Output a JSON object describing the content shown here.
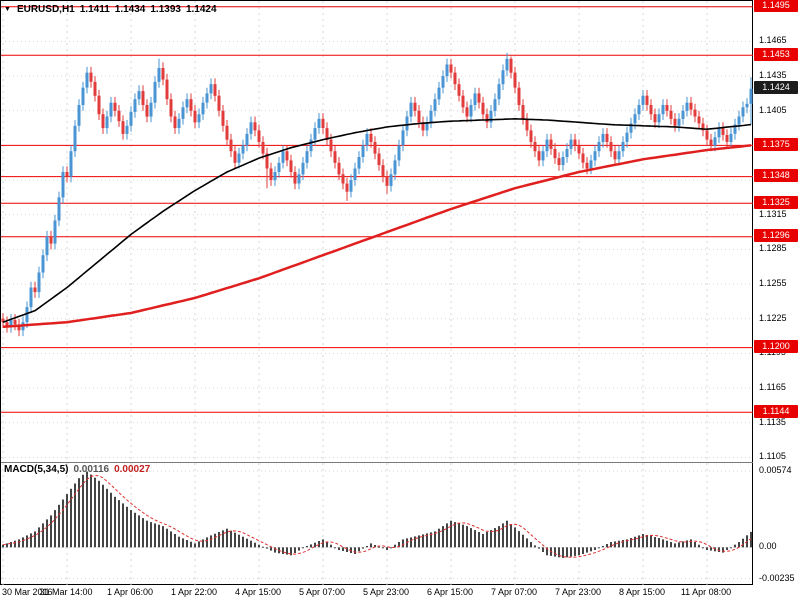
{
  "header": {
    "symbol": "EURUSD,H1",
    "open": "1.1411",
    "high": "1.1434",
    "low": "1.1393",
    "close": "1.1424"
  },
  "macd_header": {
    "label": "MACD(5,34,5)",
    "main_value": "0.00116",
    "signal_value": "0.00027"
  },
  "colors": {
    "bull": "#4a94d4",
    "bear": "#e23b3b",
    "ma_fast_black": "#000000",
    "ma_slow_red": "#e01f1f",
    "level_line": "#f00000",
    "level_label_bg": "#e80000",
    "current_label_bg": "#1c1c1c",
    "grid": "#d6d6d6",
    "histogram": "#444444",
    "signal_line": "#e03030",
    "text": "#000000",
    "background": "#ffffff"
  },
  "chart_data": {
    "type": "candlestick",
    "symbol": "EURUSD",
    "timeframe": "H1",
    "title": "EURUSD,H1 1.1411 1.1434 1.1393 1.1424",
    "ylim": [
      1.1101,
      1.15
    ],
    "price_step": 0.003,
    "axis_ticks": [
      "1.1495",
      "1.1465",
      "1.1435",
      "1.1405",
      "1.1375",
      "1.1345",
      "1.1315",
      "1.1285",
      "1.1255",
      "1.1225",
      "1.1195",
      "1.1165",
      "1.1135",
      "1.1105"
    ],
    "levels": [
      1.1495,
      1.1453,
      1.1375,
      1.1348,
      1.1325,
      1.1296,
      1.12,
      1.1144
    ],
    "level_labels": [
      "1.1495",
      "1.1453",
      "1.1375",
      "1.1348",
      "1.1325",
      "1.1296",
      "1.1200",
      "1.1144"
    ],
    "current_price": 1.1424,
    "current_price_label": "1.1424",
    "last_bar_ohlc": [
      1.1411,
      1.1434,
      1.1393,
      1.1424
    ],
    "bars_total": 188,
    "first_open": 1.1225,
    "default_wick": 0.0005,
    "closes": [
      1.1222,
      1.1218,
      1.1224,
      1.122,
      1.1215,
      1.1222,
      1.1235,
      1.1252,
      1.1248,
      1.1265,
      1.128,
      1.1296,
      1.129,
      1.131,
      1.133,
      1.1352,
      1.1348,
      1.137,
      1.1392,
      1.141,
      1.1425,
      1.1438,
      1.143,
      1.1418,
      1.1402,
      1.139,
      1.14,
      1.1412,
      1.1405,
      1.1396,
      1.1385,
      1.1392,
      1.1404,
      1.1415,
      1.1422,
      1.141,
      1.14,
      1.1412,
      1.143,
      1.1442,
      1.1432,
      1.1415,
      1.14,
      1.139,
      1.1398,
      1.1408,
      1.1415,
      1.1405,
      1.1395,
      1.1402,
      1.1412,
      1.142,
      1.1428,
      1.1418,
      1.1405,
      1.1392,
      1.138,
      1.137,
      1.136,
      1.1368,
      1.1375,
      1.1385,
      1.1395,
      1.1388,
      1.1378,
      1.1368,
      1.1355,
      1.1345,
      1.1352,
      1.136,
      1.137,
      1.1362,
      1.1352,
      1.1342,
      1.135,
      1.136,
      1.137,
      1.138,
      1.139,
      1.1398,
      1.139,
      1.138,
      1.137,
      1.136,
      1.135,
      1.1342,
      1.1335,
      1.1345,
      1.1355,
      1.1365,
      1.1375,
      1.1385,
      1.1378,
      1.1368,
      1.1358,
      1.1348,
      1.134,
      1.135,
      1.1362,
      1.1375,
      1.1388,
      1.14,
      1.1412,
      1.1405,
      1.1395,
      1.1388,
      1.1395,
      1.1405,
      1.1415,
      1.1425,
      1.1435,
      1.1445,
      1.1438,
      1.1428,
      1.1418,
      1.1408,
      1.14,
      1.141,
      1.142,
      1.1412,
      1.1402,
      1.1395,
      1.1405,
      1.1415,
      1.1428,
      1.144,
      1.145,
      1.1438,
      1.1425,
      1.141,
      1.1398,
      1.1388,
      1.1378,
      1.137,
      1.1362,
      1.137,
      1.138,
      1.1372,
      1.1364,
      1.1358,
      1.1365,
      1.1372,
      1.138,
      1.1375,
      1.1368,
      1.136,
      1.1355,
      1.1362,
      1.137,
      1.1378,
      1.1385,
      1.1378,
      1.137,
      1.1363,
      1.137,
      1.1378,
      1.1386,
      1.1394,
      1.1402,
      1.141,
      1.1418,
      1.141,
      1.1402,
      1.1395,
      1.1402,
      1.141,
      1.1405,
      1.1398,
      1.1392,
      1.1398,
      1.1405,
      1.1412,
      1.1406,
      1.14,
      1.1394,
      1.1388,
      1.138,
      1.1375,
      1.1382,
      1.139,
      1.1384,
      1.1378,
      1.1385,
      1.1393,
      1.14,
      1.1408,
      1.1411,
      1.1424
    ],
    "wick_overrides": {
      "21": {
        "h": 1.1443
      },
      "39": {
        "h": 1.145
      },
      "66": {
        "l": 1.1338
      },
      "86": {
        "l": 1.1327
      },
      "96": {
        "l": 1.1333
      },
      "127": {
        "h": 1.1452
      },
      "187": {
        "h": 1.1434,
        "l": 1.1393
      }
    },
    "ma_fast_black": [
      [
        0,
        1.1222
      ],
      [
        8,
        1.1232
      ],
      [
        16,
        1.1252
      ],
      [
        24,
        1.1275
      ],
      [
        32,
        1.1298
      ],
      [
        40,
        1.1318
      ],
      [
        48,
        1.1336
      ],
      [
        56,
        1.1352
      ],
      [
        64,
        1.1364
      ],
      [
        72,
        1.1373
      ],
      [
        80,
        1.138
      ],
      [
        88,
        1.1386
      ],
      [
        96,
        1.1391
      ],
      [
        104,
        1.1394
      ],
      [
        112,
        1.1396
      ],
      [
        120,
        1.1397
      ],
      [
        128,
        1.1398
      ],
      [
        136,
        1.1397
      ],
      [
        144,
        1.1395
      ],
      [
        152,
        1.1393
      ],
      [
        160,
        1.1392
      ],
      [
        168,
        1.1391
      ],
      [
        176,
        1.1389
      ],
      [
        187,
        1.1393
      ]
    ],
    "ma_slow_red": [
      [
        0,
        1.1218
      ],
      [
        16,
        1.1222
      ],
      [
        32,
        1.123
      ],
      [
        48,
        1.1243
      ],
      [
        64,
        1.126
      ],
      [
        80,
        1.128
      ],
      [
        96,
        1.13
      ],
      [
        112,
        1.132
      ],
      [
        128,
        1.1338
      ],
      [
        144,
        1.1352
      ],
      [
        160,
        1.1363
      ],
      [
        176,
        1.1371
      ],
      [
        187,
        1.1375
      ]
    ],
    "x_labels": [
      {
        "i": 0,
        "t": "30 Mar 2016"
      },
      {
        "i": 16,
        "t": "31 Mar 14:00"
      },
      {
        "i": 32,
        "t": "1 Apr 06:00"
      },
      {
        "i": 48,
        "t": "1 Apr 22:00"
      },
      {
        "i": 64,
        "t": "4 Apr 15:00"
      },
      {
        "i": 80,
        "t": "5 Apr 07:00"
      },
      {
        "i": 96,
        "t": "5 Apr 23:00"
      },
      {
        "i": 112,
        "t": "6 Apr 15:00"
      },
      {
        "i": 128,
        "t": "7 Apr 07:00"
      },
      {
        "i": 144,
        "t": "7 Apr 23:00"
      },
      {
        "i": 160,
        "t": "8 Apr 15:00"
      },
      {
        "i": 176,
        "t": "11 Apr 08:00"
      }
    ],
    "macd": {
      "label": "MACD(5,34,5)",
      "main_value": 0.00116,
      "signal_value": 0.00027,
      "ylim": [
        -0.00283,
        0.00634
      ],
      "axis_values": [
        0.00574,
        0,
        -0.00235
      ],
      "axis_labels": [
        "0.00574",
        "0.00",
        "-0.00235"
      ],
      "signal_smoothing": 5,
      "histogram_points": [
        [
          0,
          0.0002
        ],
        [
          4,
          0.0006
        ],
        [
          8,
          0.0012
        ],
        [
          12,
          0.0024
        ],
        [
          16,
          0.004
        ],
        [
          19,
          0.0052
        ],
        [
          21,
          0.0057
        ],
        [
          24,
          0.005
        ],
        [
          28,
          0.0038
        ],
        [
          32,
          0.0028
        ],
        [
          36,
          0.002
        ],
        [
          40,
          0.0016
        ],
        [
          44,
          0.0008
        ],
        [
          48,
          0.0003
        ],
        [
          52,
          0.0009
        ],
        [
          56,
          0.0014
        ],
        [
          60,
          0.0008
        ],
        [
          64,
          0.0002
        ],
        [
          68,
          -0.0004
        ],
        [
          72,
          -0.0006
        ],
        [
          76,
          0.0001
        ],
        [
          80,
          0.0006
        ],
        [
          84,
          -0.0002
        ],
        [
          88,
          -0.0005
        ],
        [
          92,
          0.0003
        ],
        [
          96,
          -0.0002
        ],
        [
          100,
          0.0006
        ],
        [
          104,
          0.0009
        ],
        [
          108,
          0.0012
        ],
        [
          112,
          0.002
        ],
        [
          116,
          0.0016
        ],
        [
          120,
          0.001
        ],
        [
          124,
          0.0016
        ],
        [
          126,
          0.002
        ],
        [
          128,
          0.0015
        ],
        [
          132,
          0.0004
        ],
        [
          136,
          -0.0006
        ],
        [
          140,
          -0.0008
        ],
        [
          144,
          -0.0006
        ],
        [
          148,
          -0.0002
        ],
        [
          152,
          0.0004
        ],
        [
          156,
          0.0006
        ],
        [
          160,
          0.001
        ],
        [
          164,
          0.0007
        ],
        [
          168,
          0.0003
        ],
        [
          172,
          0.0006
        ],
        [
          176,
          -0.0002
        ],
        [
          180,
          -0.0004
        ],
        [
          184,
          0.0004
        ],
        [
          187,
          0.00116
        ]
      ]
    }
  }
}
